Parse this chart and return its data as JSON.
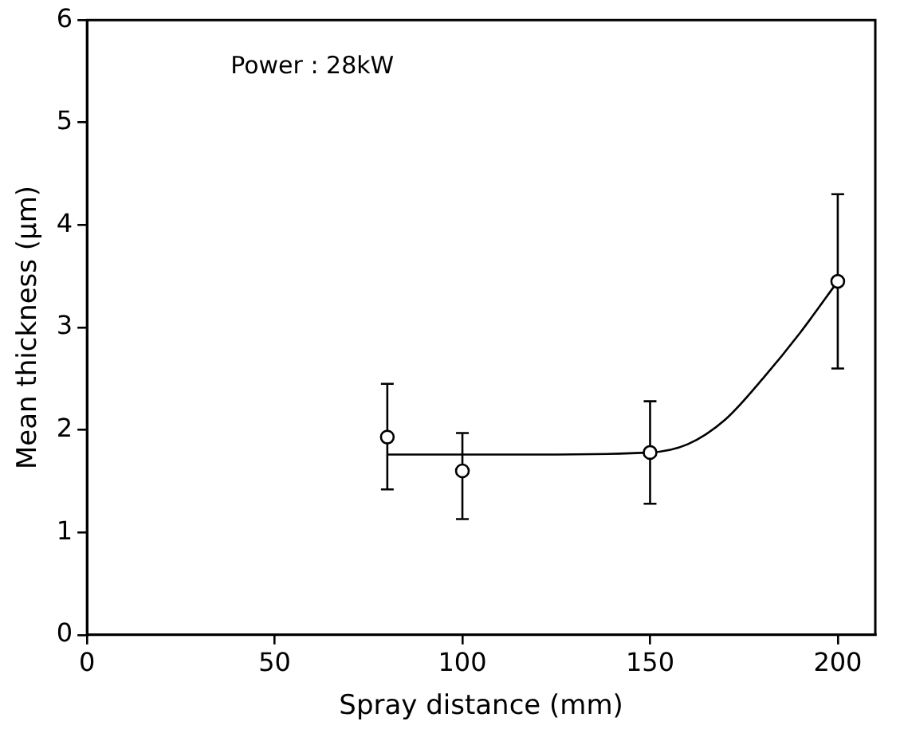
{
  "chart_data": {
    "type": "scatter",
    "xlabel": "Spray distance (mm)",
    "ylabel": "Mean thickness (μm)",
    "annotations": [
      "Power : 28kW"
    ],
    "xlim": [
      0,
      210
    ],
    "xticks": [
      0,
      50,
      100,
      150,
      200
    ],
    "ylim": [
      0,
      6
    ],
    "yticks": [
      0,
      1,
      2,
      3,
      4,
      5,
      6
    ],
    "grid": false,
    "marker": "circle",
    "series": [
      {
        "type": "scatter",
        "color": "#000000",
        "x": [
          80,
          100,
          150,
          200
        ],
        "values": [
          1.93,
          1.6,
          1.78,
          3.45
        ],
        "errors": [
          [
            1.42,
            2.45
          ],
          [
            1.13,
            1.97
          ],
          [
            1.28,
            2.28
          ],
          [
            2.6,
            4.3
          ]
        ]
      },
      {
        "type": "line",
        "color": "#000000",
        "marker": "none",
        "x": [
          80,
          100,
          120,
          150,
          160,
          170,
          180,
          190,
          200
        ],
        "values": [
          1.76,
          1.76,
          1.76,
          1.78,
          1.86,
          2.1,
          2.5,
          2.95,
          3.45
        ]
      }
    ]
  }
}
